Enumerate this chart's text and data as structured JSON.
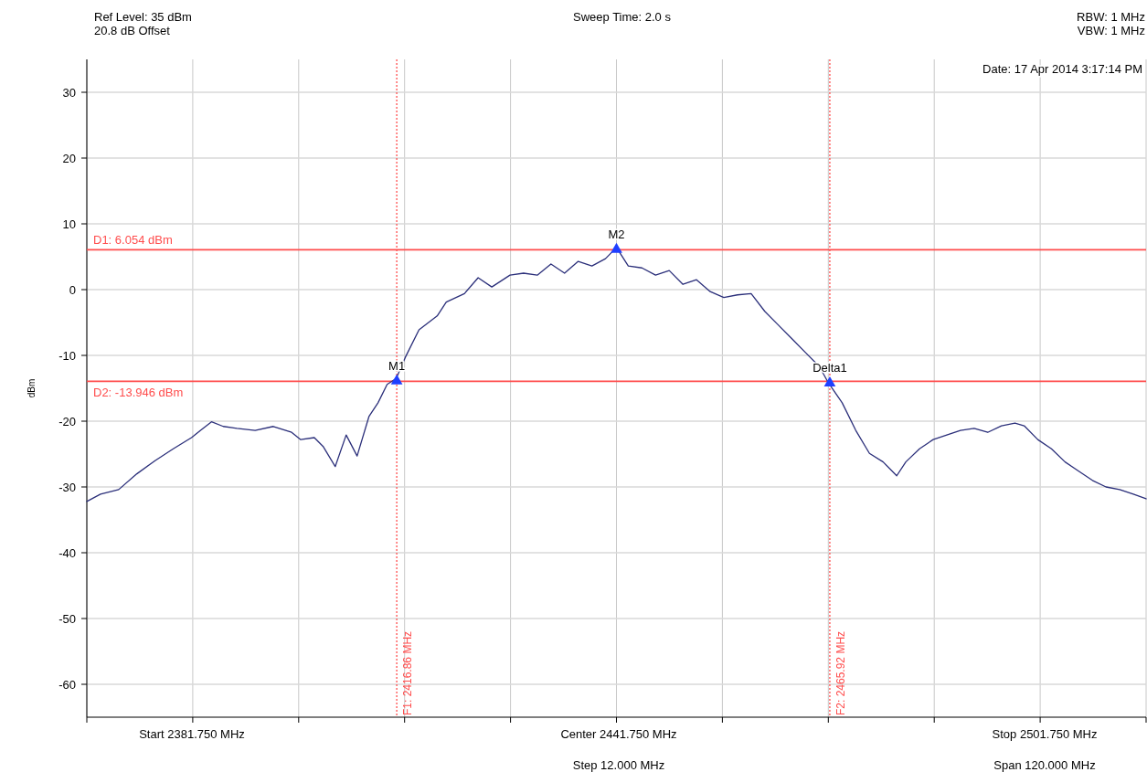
{
  "chart_data": {
    "type": "line",
    "ylabel": "dBm",
    "xlim": [
      2381.75,
      2501.75
    ],
    "ylim": [
      -65,
      35
    ],
    "xticks": [
      {
        "value": 2381.75,
        "label": null
      },
      {
        "value": 2393.75,
        "label": null
      },
      {
        "value": 2405.75,
        "label": null
      },
      {
        "value": 2417.75,
        "label": null
      },
      {
        "value": 2429.75,
        "label": null
      },
      {
        "value": 2441.75,
        "label": null
      },
      {
        "value": 2453.75,
        "label": null
      },
      {
        "value": 2465.75,
        "label": null
      },
      {
        "value": 2477.75,
        "label": null
      },
      {
        "value": 2489.75,
        "label": null
      },
      {
        "value": 2501.75,
        "label": null
      }
    ],
    "yticks": [
      -60,
      -50,
      -40,
      -30,
      -20,
      -10,
      0,
      10,
      20,
      30
    ],
    "grid": true,
    "series": [
      {
        "color": "#2b2f7a",
        "x": [
          2381.75,
          2383.3,
          2385.36,
          2387.42,
          2389.48,
          2391.54,
          2393.61,
          2394.64,
          2395.87,
          2397.21,
          2398.76,
          2400.82,
          2402.88,
          2404.95,
          2405.98,
          2407.52,
          2408.55,
          2409.89,
          2411.13,
          2412.37,
          2413.71,
          2414.74,
          2415.77,
          2416.8,
          2417.83,
          2419.38,
          2421.44,
          2422.47,
          2424.53,
          2426.08,
          2427.63,
          2429.69,
          2431.23,
          2432.78,
          2434.33,
          2435.87,
          2437.42,
          2438.97,
          2440.51,
          2441.75,
          2443.09,
          2444.64,
          2446.18,
          2447.73,
          2449.28,
          2450.82,
          2452.37,
          2453.91,
          2455.46,
          2457.01,
          2458.55,
          2460.1,
          2461.65,
          2463.19,
          2464.74,
          2465.77,
          2467.32,
          2468.86,
          2470.41,
          2471.96,
          2473.5,
          2474.53,
          2476.08,
          2477.63,
          2479.17,
          2480.72,
          2482.27,
          2483.81,
          2485.36,
          2486.9,
          2487.94,
          2489.48,
          2491.03,
          2492.57,
          2494.12,
          2495.67,
          2497.21,
          2498.76,
          2500.31,
          2501.75
        ],
        "values": [
          -32.2,
          -31.1,
          -30.4,
          -28,
          -26,
          -24.2,
          -22.5,
          -21.4,
          -20.1,
          -20.8,
          -21.1,
          -21.4,
          -20.8,
          -21.7,
          -22.8,
          -22.5,
          -23.9,
          -26.9,
          -22.1,
          -25.3,
          -19.3,
          -17.2,
          -14.4,
          -13.5,
          -10.3,
          -6.1,
          -4,
          -1.9,
          -0.6,
          1.8,
          0.4,
          2.2,
          2.5,
          2.2,
          3.9,
          2.5,
          4.3,
          3.6,
          4.7,
          6.4,
          3.6,
          3.3,
          2.2,
          2.9,
          0.8,
          1.5,
          -0.3,
          -1.2,
          -0.8,
          -0.6,
          -3.3,
          -5.4,
          -7.5,
          -9.6,
          -11.7,
          -14.2,
          -17.2,
          -21.4,
          -24.9,
          -26.2,
          -28.3,
          -26.2,
          -24.2,
          -22.8,
          -22.1,
          -21.4,
          -21.1,
          -21.7,
          -20.7,
          -20.3,
          -20.7,
          -22.8,
          -24.2,
          -26.2,
          -27.6,
          -29,
          -30,
          -30.4,
          -31.1,
          -31.8
        ]
      },
      {
        "type": "scatter",
        "color": "#1f3fff",
        "marker": "triangle",
        "x": [
          2416.86,
          2441.75,
          2465.92
        ],
        "values": [
          -13.9,
          6.1,
          -14.2
        ]
      }
    ],
    "ref_lines": [
      {
        "axis": "y",
        "value": 6.054,
        "label": "D1: 6.054 dBm",
        "color": "#ff4d4d"
      },
      {
        "axis": "y",
        "value": -13.946,
        "label": "D2: -13.946 dBm",
        "color": "#ff4d4d"
      },
      {
        "axis": "x",
        "value": 2416.86,
        "label": "F1: 2416.86 MHz",
        "color": "#ff4d4d",
        "line_style": "dotted"
      },
      {
        "axis": "x",
        "value": 2465.92,
        "label": "F2: 2465.92 MHz",
        "color": "#ff4d4d",
        "line_style": "dotted"
      }
    ],
    "annotations": [
      "Ref Level: 35 dBm",
      "20.8 dB Offset",
      "Sweep Time: 2.0 s",
      "RBW: 1 MHz",
      "VBW: 1 MHz",
      "Date: 17 Apr 2014 3:17:14 PM",
      "Start 2381.750 MHz",
      "Center 2441.750 MHz",
      "Stop 2501.750 MHz",
      "Step 12.000 MHz",
      "Span 120.000 MHz",
      {
        "text": "M1",
        "x": 2416.86,
        "y": -13.9
      },
      {
        "text": "M2",
        "x": 2441.75,
        "y": 6.1
      },
      {
        "text": "Delta1",
        "x": 2465.92,
        "y": -14.2
      }
    ]
  }
}
